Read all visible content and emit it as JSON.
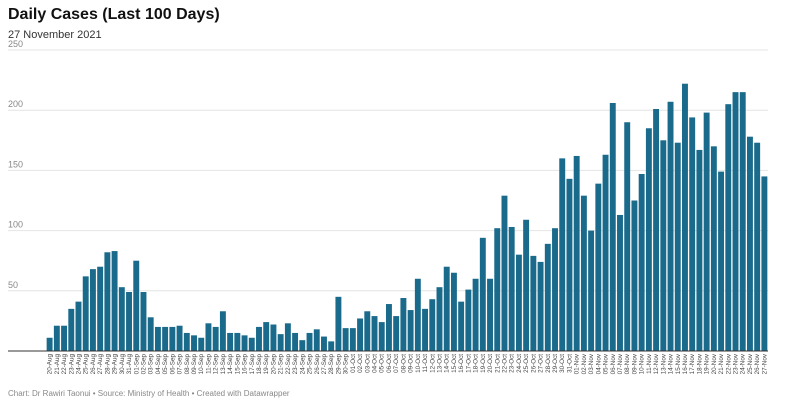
{
  "header": {
    "title": "Daily Cases (Last 100 Days)",
    "subtitle": "27 November 2021"
  },
  "footer": {
    "credit": "Chart: Dr Rawiri Taonui • Source: Ministry of Health • Created with Datawrapper"
  },
  "chart_data": {
    "type": "bar",
    "title": "Daily Cases (Last 100 Days)",
    "subtitle": "27 November 2021",
    "xlabel": "",
    "ylabel": "",
    "ylim": [
      0,
      250
    ],
    "yticks": [
      50,
      100,
      150,
      200,
      250
    ],
    "grid": true,
    "bar_color": "#1a6a8b",
    "categories": [
      "20-Aug",
      "21-Aug",
      "22-Aug",
      "23-Aug",
      "24-Aug",
      "25-Aug",
      "26-Aug",
      "27-Aug",
      "28-Aug",
      "29-Aug",
      "30-Aug",
      "31-Aug",
      "01-Sep",
      "02-Sep",
      "03-Sep",
      "04-Sep",
      "05-Sep",
      "06-Sep",
      "07-Sep",
      "08-Sep",
      "09-Sep",
      "10-Sep",
      "11-Sep",
      "12-Sep",
      "13-Sep",
      "14-Sep",
      "15-Sep",
      "16-Sep",
      "17-Sep",
      "18-Sep",
      "19-Sep",
      "20-Sep",
      "21-Sep",
      "22-Sep",
      "23-Sep",
      "24-Sep",
      "25-Sep",
      "26-Sep",
      "27-Sep",
      "28-Sep",
      "29-Sep",
      "30-Sep",
      "01-Oct",
      "02-Oct",
      "03-Oct",
      "04-Oct",
      "05-Oct",
      "06-Oct",
      "07-Oct",
      "08-Oct",
      "09-Oct",
      "10-Oct",
      "11-Oct",
      "12-Oct",
      "13-Oct",
      "14-Oct",
      "15-Oct",
      "16-Oct",
      "17-Oct",
      "18-Oct",
      "19-Oct",
      "20-Oct",
      "21-Oct",
      "22-Oct",
      "23-Oct",
      "24-Oct",
      "25-Oct",
      "26-Oct",
      "27-Oct",
      "28-Oct",
      "29-Oct",
      "30-Oct",
      "31-Oct",
      "01-Nov",
      "02-Nov",
      "03-Nov",
      "04-Nov",
      "05-Nov",
      "06-Nov",
      "07-Nov",
      "08-Nov",
      "09-Nov",
      "10-Nov",
      "11-Nov",
      "12-Nov",
      "13-Nov",
      "14-Nov",
      "15-Nov",
      "16-Nov",
      "17-Nov",
      "18-Nov",
      "19-Nov",
      "20-Nov",
      "21-Nov",
      "22-Nov",
      "23-Nov",
      "24-Nov",
      "25-Nov",
      "26-Nov",
      "27-Nov"
    ],
    "values": [
      11,
      21,
      21,
      35,
      41,
      62,
      68,
      70,
      82,
      83,
      53,
      49,
      75,
      49,
      28,
      20,
      20,
      20,
      21,
      15,
      13,
      11,
      23,
      20,
      33,
      15,
      15,
      13,
      11,
      20,
      24,
      22,
      14,
      23,
      15,
      9,
      15,
      18,
      12,
      8,
      45,
      19,
      19,
      27,
      33,
      29,
      24,
      39,
      29,
      44,
      34,
      60,
      35,
      43,
      53,
      70,
      65,
      41,
      51,
      60,
      94,
      60,
      102,
      129,
      103,
      80,
      109,
      79,
      74,
      89,
      102,
      160,
      143,
      162,
      129,
      100,
      139,
      163,
      206,
      113,
      190,
      125,
      147,
      185,
      201,
      175,
      207,
      173,
      222,
      194,
      167,
      198,
      170,
      149,
      205,
      215,
      215,
      178,
      173,
      145
    ]
  }
}
